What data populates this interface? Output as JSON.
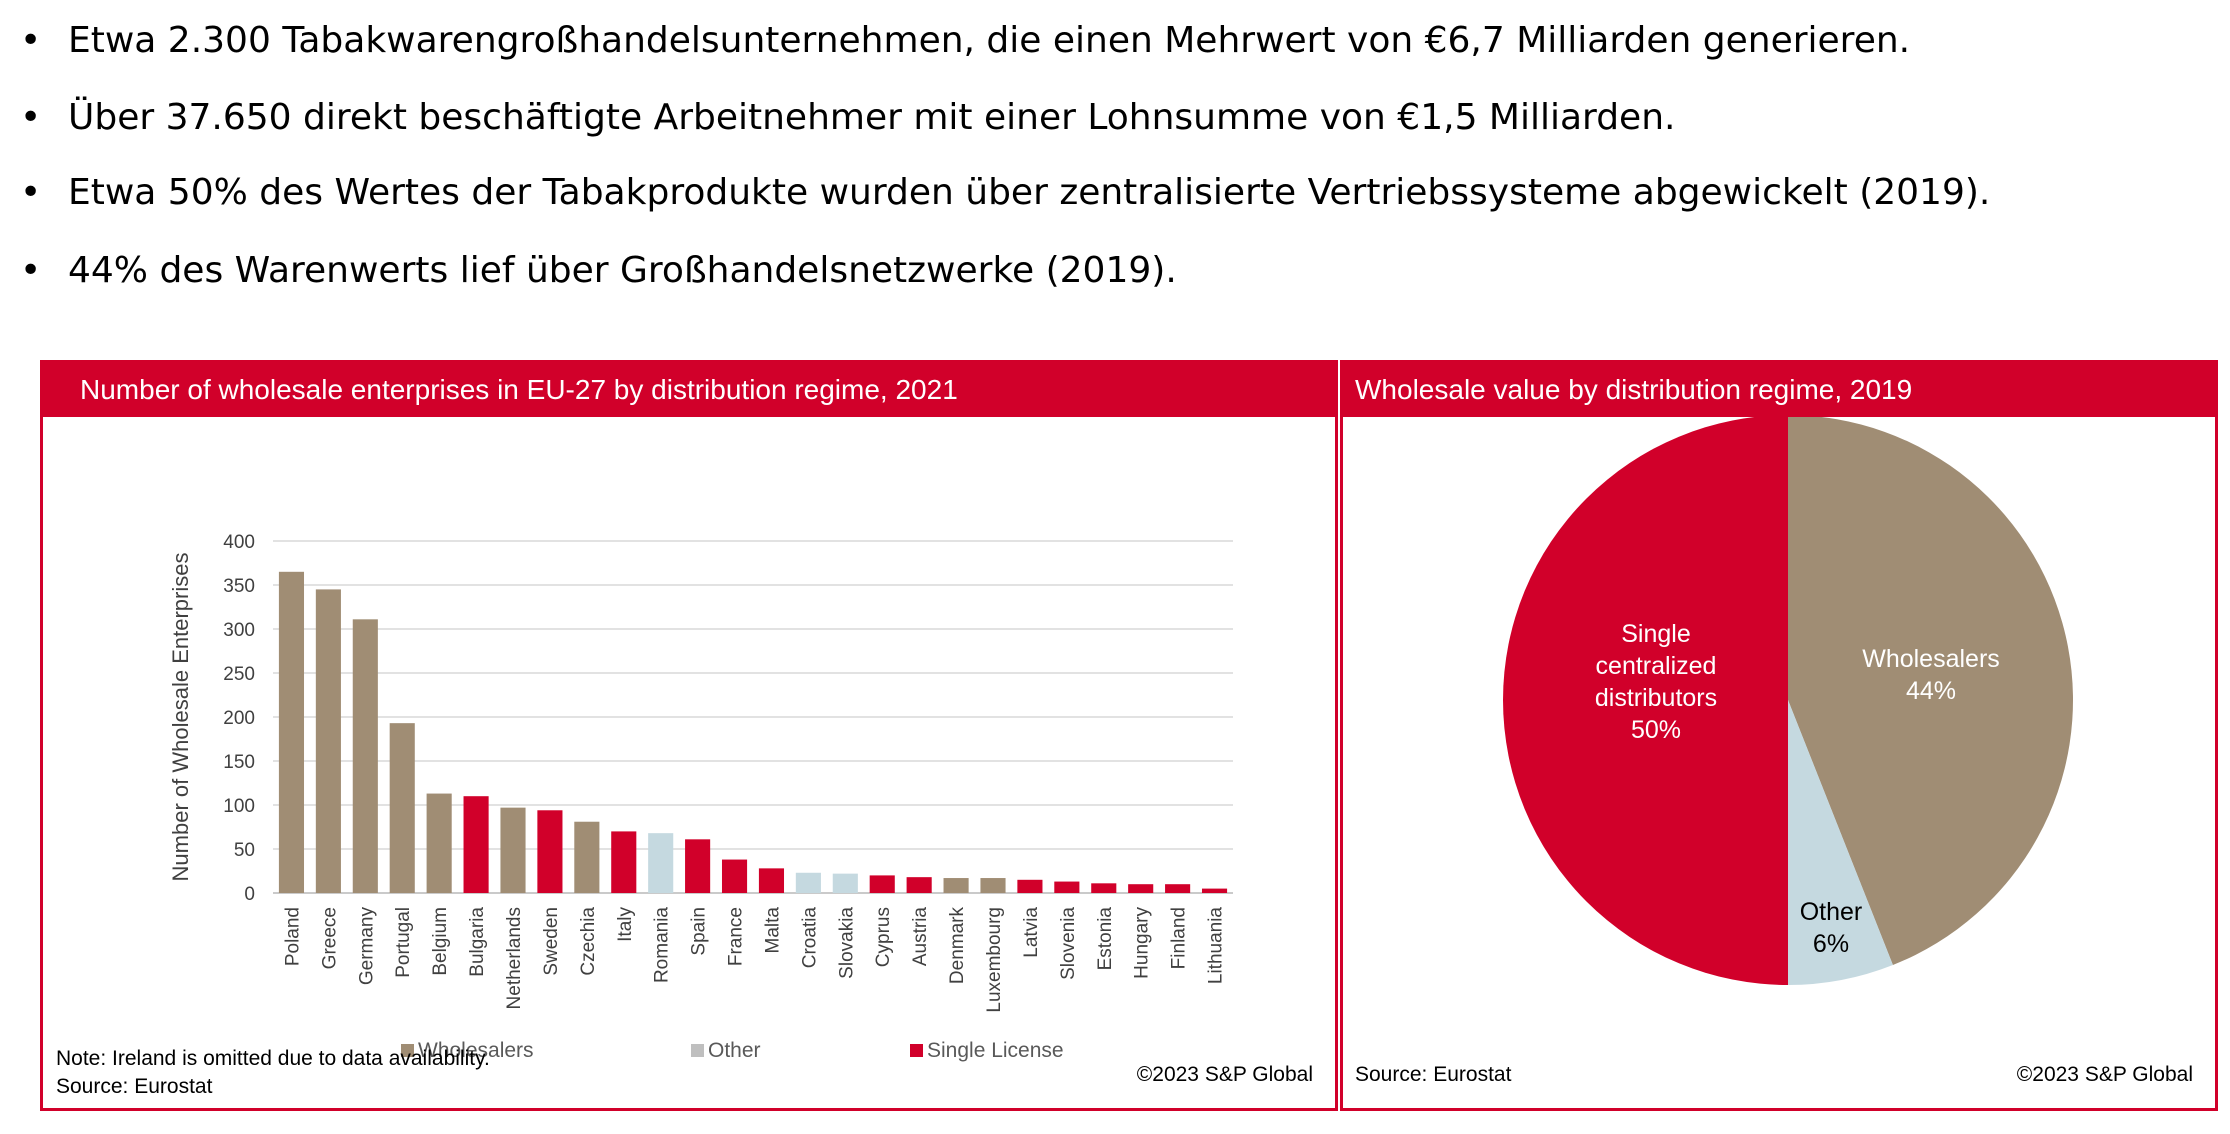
{
  "bullets": [
    {
      "marker": "•",
      "text": "Etwa 2.300 Tabakwarengroßhandelsunternehmen, die einen Mehrwert von €6,7 Milliarden generieren."
    },
    {
      "marker": "•",
      "text": "Über 37.650 direkt beschäftigte Arbeitnehmer mit einer Lohnsumme von €1,5 Milliarden."
    },
    {
      "marker": "•",
      "text": "Etwa 50% des Wertes der Tabakprodukte wurden über zentralisierte Vertriebssysteme abgewickelt (2019)."
    },
    {
      "marker": "•",
      "text": "44% des Warenwerts lief über Großhandelsnetzwerke (2019)."
    }
  ],
  "colors": {
    "accent": "#d1002a",
    "wholesalers": "#a08d74",
    "other": "#c5d9e0",
    "single": "#d1002a",
    "gridline": "#d9d9d9"
  },
  "left_panel": {
    "title": "Number of wholesale enterprises in EU-27 by distribution regime, 2021",
    "note": "Note: Ireland is omitted due to data availability.",
    "source": "Source: Eurostat",
    "copyright": "©2023 S&P Global"
  },
  "right_panel": {
    "title": "Wholesale value by distribution regime, 2019",
    "source": "Source: Eurostat",
    "copyright": "©2023 S&P Global"
  },
  "chart_data": [
    {
      "type": "bar",
      "title": "Number of wholesale enterprises in EU-27 by distribution regime, 2021",
      "xlabel": "",
      "ylabel": "Number of Wholesale Enterprises",
      "ylim": [
        0,
        400
      ],
      "yticks": [
        0,
        50,
        100,
        150,
        200,
        250,
        300,
        350,
        400
      ],
      "grid": true,
      "legend_position": "bottom",
      "legend": [
        {
          "name": "Wholesalers",
          "color": "#a08d74"
        },
        {
          "name": "Other",
          "color": "#c5d9e0"
        },
        {
          "name": "Single License",
          "color": "#d1002a"
        }
      ],
      "categories": [
        "Poland",
        "Greece",
        "Germany",
        "Portugal",
        "Belgium",
        "Bulgaria",
        "Netherlands",
        "Sweden",
        "Czechia",
        "Italy",
        "Romania",
        "Spain",
        "France",
        "Malta",
        "Croatia",
        "Slovakia",
        "Cyprus",
        "Austria",
        "Denmark",
        "Luxembourg",
        "Latvia",
        "Slovenia",
        "Estonia",
        "Hungary",
        "Finland",
        "Lithuania"
      ],
      "values": [
        365,
        345,
        311,
        193,
        113,
        110,
        97,
        94,
        81,
        70,
        68,
        61,
        38,
        28,
        23,
        22,
        20,
        18,
        17,
        17,
        15,
        13,
        11,
        10,
        10,
        5
      ],
      "regime": [
        "Wholesalers",
        "Wholesalers",
        "Wholesalers",
        "Wholesalers",
        "Wholesalers",
        "Single License",
        "Wholesalers",
        "Single License",
        "Wholesalers",
        "Single License",
        "Other",
        "Single License",
        "Single License",
        "Single License",
        "Other",
        "Other",
        "Single License",
        "Single License",
        "Wholesalers",
        "Wholesalers",
        "Single License",
        "Single License",
        "Single License",
        "Single License",
        "Single License",
        "Single License"
      ]
    },
    {
      "type": "pie",
      "title": "Wholesale value by distribution regime, 2019",
      "slices": [
        {
          "label": "Wholesalers",
          "value": 44,
          "value_label": "44%",
          "color": "#a08d74"
        },
        {
          "label": "Other",
          "value": 6,
          "value_label": "6%",
          "color": "#c5d9e0"
        },
        {
          "label": "Single centralized distributors",
          "label_lines": [
            "Single",
            "centralized",
            "distributors"
          ],
          "value": 50,
          "value_label": "50%",
          "color": "#d1002a"
        }
      ]
    }
  ]
}
